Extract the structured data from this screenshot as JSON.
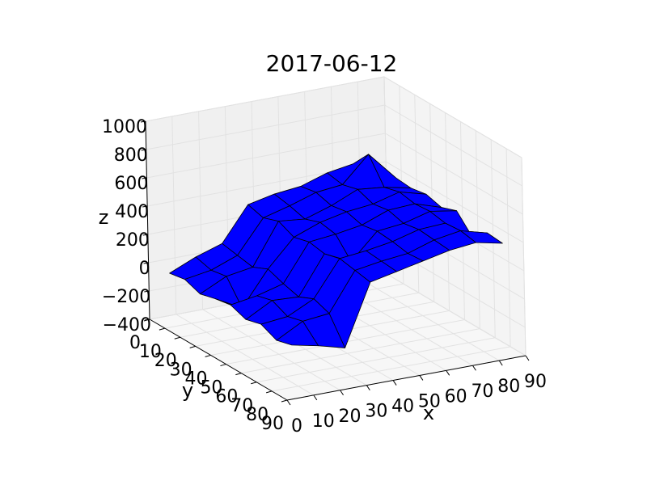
{
  "chart_data": {
    "type": "surface3d",
    "title": "2017-06-12",
    "x_label": "x",
    "y_label": "y",
    "z_label": "z",
    "x": [
      5,
      15,
      25,
      35,
      45,
      55,
      65,
      75,
      85
    ],
    "y": [
      5,
      15,
      25,
      35,
      45,
      55,
      65,
      75,
      85
    ],
    "z": [
      [
        -60,
        20,
        80,
        320,
        360,
        380,
        440,
        470,
        430
      ],
      [
        -40,
        -10,
        60,
        290,
        340,
        400,
        420,
        600,
        400
      ],
      [
        -80,
        10,
        40,
        330,
        310,
        370,
        450,
        430,
        390
      ],
      [
        -50,
        -150,
        90,
        280,
        350,
        390,
        410,
        460,
        410
      ],
      [
        -30,
        0,
        50,
        310,
        330,
        360,
        430,
        440,
        380
      ],
      [
        -70,
        30,
        20,
        290,
        200,
        380,
        400,
        450,
        420
      ],
      [
        -40,
        -20,
        70,
        320,
        340,
        370,
        420,
        430,
        300
      ],
      [
        -90,
        10,
        30,
        300,
        330,
        350,
        410,
        440,
        390
      ],
      [
        -60,
        -100,
        -150,
        280,
        320,
        360,
        400,
        420,
        380
      ]
    ],
    "color": "#0000ff",
    "edge_color": "#000000",
    "xlim": [
      0,
      90
    ],
    "ylim": [
      0,
      90
    ],
    "zlim": [
      -400,
      1000
    ],
    "xticks": [
      0,
      10,
      20,
      30,
      40,
      50,
      60,
      70,
      80,
      90
    ],
    "yticks": [
      0,
      10,
      20,
      30,
      40,
      50,
      60,
      70,
      80,
      90
    ],
    "zticks": [
      {
        "value": -400,
        "label": "−400"
      },
      {
        "value": -200,
        "label": "−200"
      },
      0,
      200,
      400,
      600,
      800,
      1000
    ],
    "grid": true
  }
}
